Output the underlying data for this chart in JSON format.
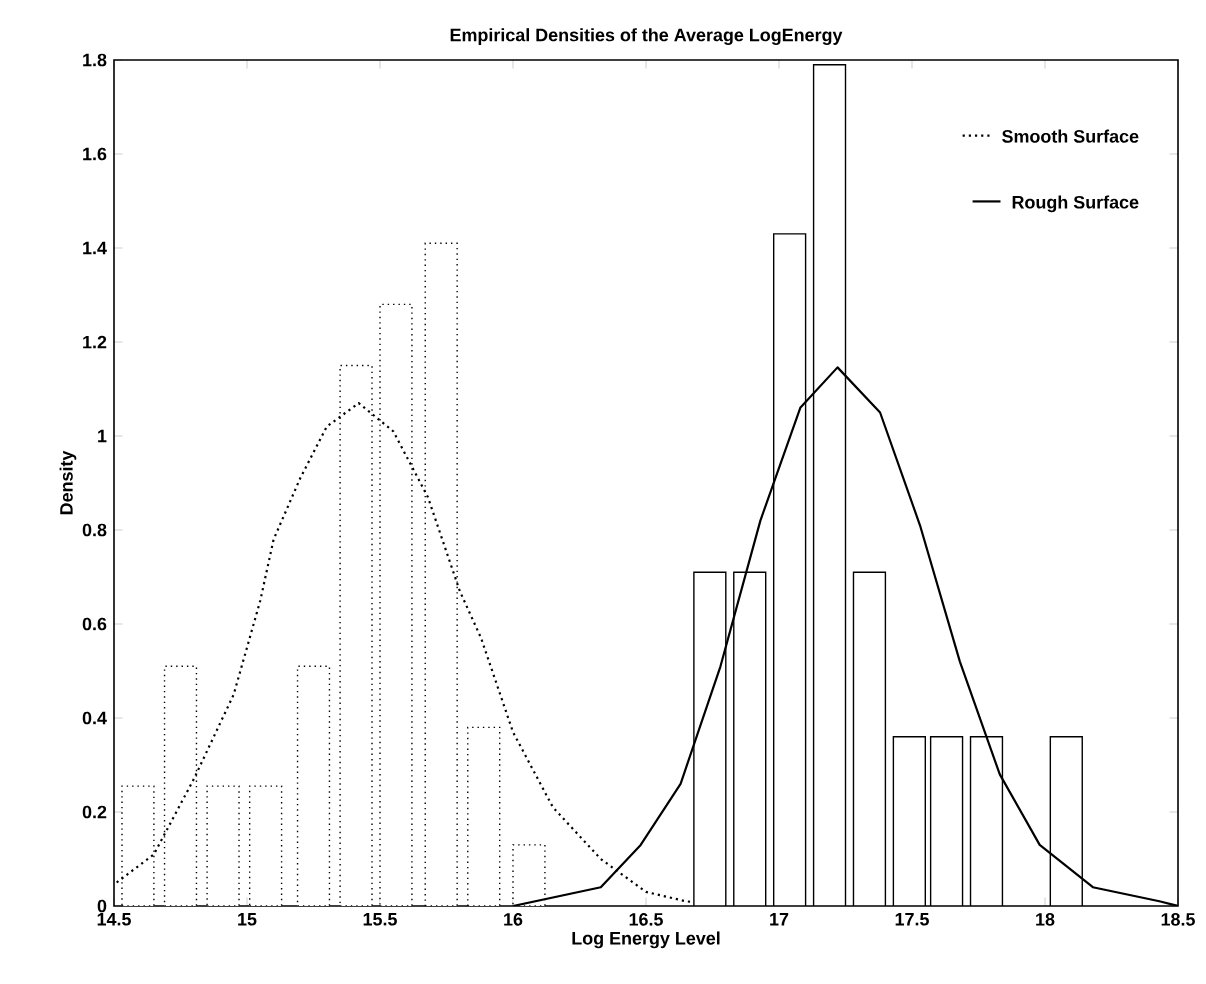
{
  "chart_data": {
    "type": "bar",
    "title": "Empirical Densities of the Average LogEnergy",
    "xlabel": "Log Energy Level",
    "ylabel": "Density",
    "xlim": [
      14.5,
      18.5
    ],
    "ylim": [
      0,
      1.8
    ],
    "xticks": [
      14.5,
      15,
      15.5,
      16,
      16.5,
      17,
      17.5,
      18,
      18.5
    ],
    "yticks": [
      0,
      0.2,
      0.4,
      0.6,
      0.8,
      1,
      1.2,
      1.4,
      1.6,
      1.8
    ],
    "grid": false,
    "legend": "top right",
    "series": [
      {
        "color": "#ffffff",
        "line_style": "dotted",
        "x": [
          14.59,
          14.75,
          14.91,
          15.07,
          15.25,
          15.41,
          15.56,
          15.73,
          15.89,
          16.06
        ],
        "values": [
          0.255,
          0.51,
          0.255,
          0.255,
          0.51,
          1.15,
          1.28,
          1.41,
          0.38,
          0.13
        ]
      },
      {
        "type": "line",
        "name": "Smooth Surface",
        "color": "#000000",
        "line_style": "dotted",
        "x": [
          14.51,
          14.65,
          14.8,
          14.95,
          15.05,
          15.1,
          15.2,
          15.3,
          15.42,
          15.55,
          15.68,
          15.8,
          15.88,
          16.0,
          16.15,
          16.33,
          16.5,
          16.65,
          16.8
        ],
        "values": [
          0.05,
          0.11,
          0.27,
          0.45,
          0.65,
          0.78,
          0.91,
          1.02,
          1.07,
          1.01,
          0.87,
          0.67,
          0.57,
          0.37,
          0.21,
          0.1,
          0.03,
          0.01,
          0.0
        ]
      },
      {
        "color": "#ffffff",
        "line_style": "solid",
        "x": [
          16.74,
          16.89,
          17.04,
          17.19,
          17.34,
          17.49,
          17.63,
          17.78,
          18.08
        ],
        "values": [
          0.71,
          0.71,
          1.43,
          1.79,
          0.71,
          0.36,
          0.36,
          0.36,
          0.36
        ]
      },
      {
        "type": "line",
        "name": "Rough Surface",
        "color": "#000000",
        "line_style": "solid",
        "x": [
          16.0,
          16.33,
          16.48,
          16.63,
          16.78,
          16.93,
          17.08,
          17.22,
          17.38,
          17.53,
          17.68,
          17.83,
          17.98,
          18.18,
          18.43,
          18.5
        ],
        "values": [
          0.0,
          0.04,
          0.13,
          0.26,
          0.51,
          0.82,
          1.06,
          1.146,
          1.05,
          0.81,
          0.52,
          0.28,
          0.13,
          0.04,
          0.01,
          0.0
        ]
      }
    ]
  }
}
